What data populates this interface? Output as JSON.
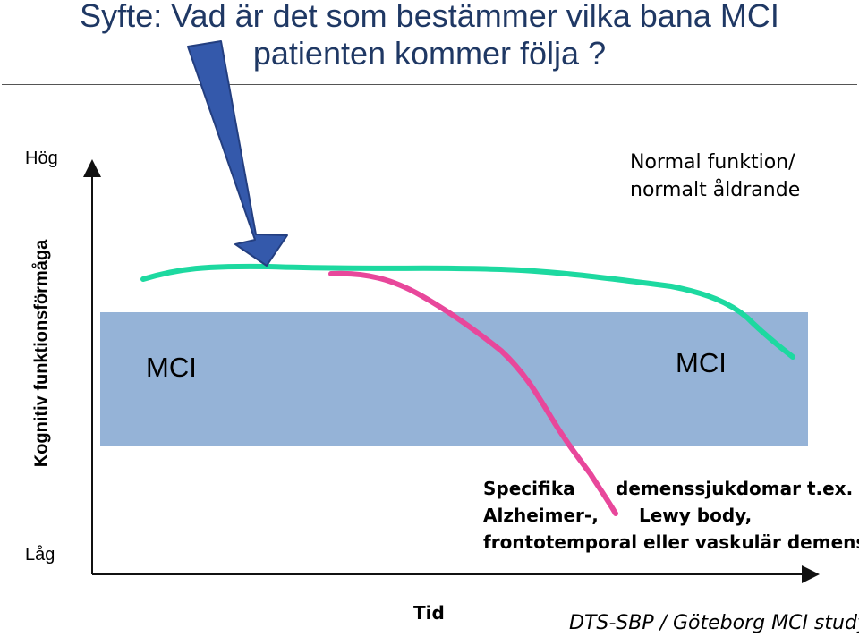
{
  "title": {
    "line1": "Syfte: Vad är det som bestämmer vilka bana MCI",
    "line2": "patienten kommer följa ?"
  },
  "y_axis": {
    "label": "Kognitiv funktionsförmåga",
    "high": "Hög",
    "low": "Låg"
  },
  "x_axis": {
    "label": "Tid"
  },
  "normal_label": {
    "line1": "Normal funktion/",
    "line2": "normalt åldrande"
  },
  "mci_band": {
    "left_label": "MCI",
    "right_label": "MCI",
    "color": "#95b3d7"
  },
  "specific": {
    "line1a": "Specifika",
    "line1b": "demenssjukdomar t.ex.",
    "line2a": "Alzheimer-,",
    "line2b": "Lewy body,",
    "line3": "frontotemporal eller vaskulär demens"
  },
  "credit": "DTS-SBP / Göteborg MCI study",
  "colors": {
    "title": "#1f3864",
    "normal_curve": "#1dd9a0",
    "dementia_curve": "#e8479b",
    "arrow": "#3459ab",
    "arrow_outline": "#243f80"
  }
}
